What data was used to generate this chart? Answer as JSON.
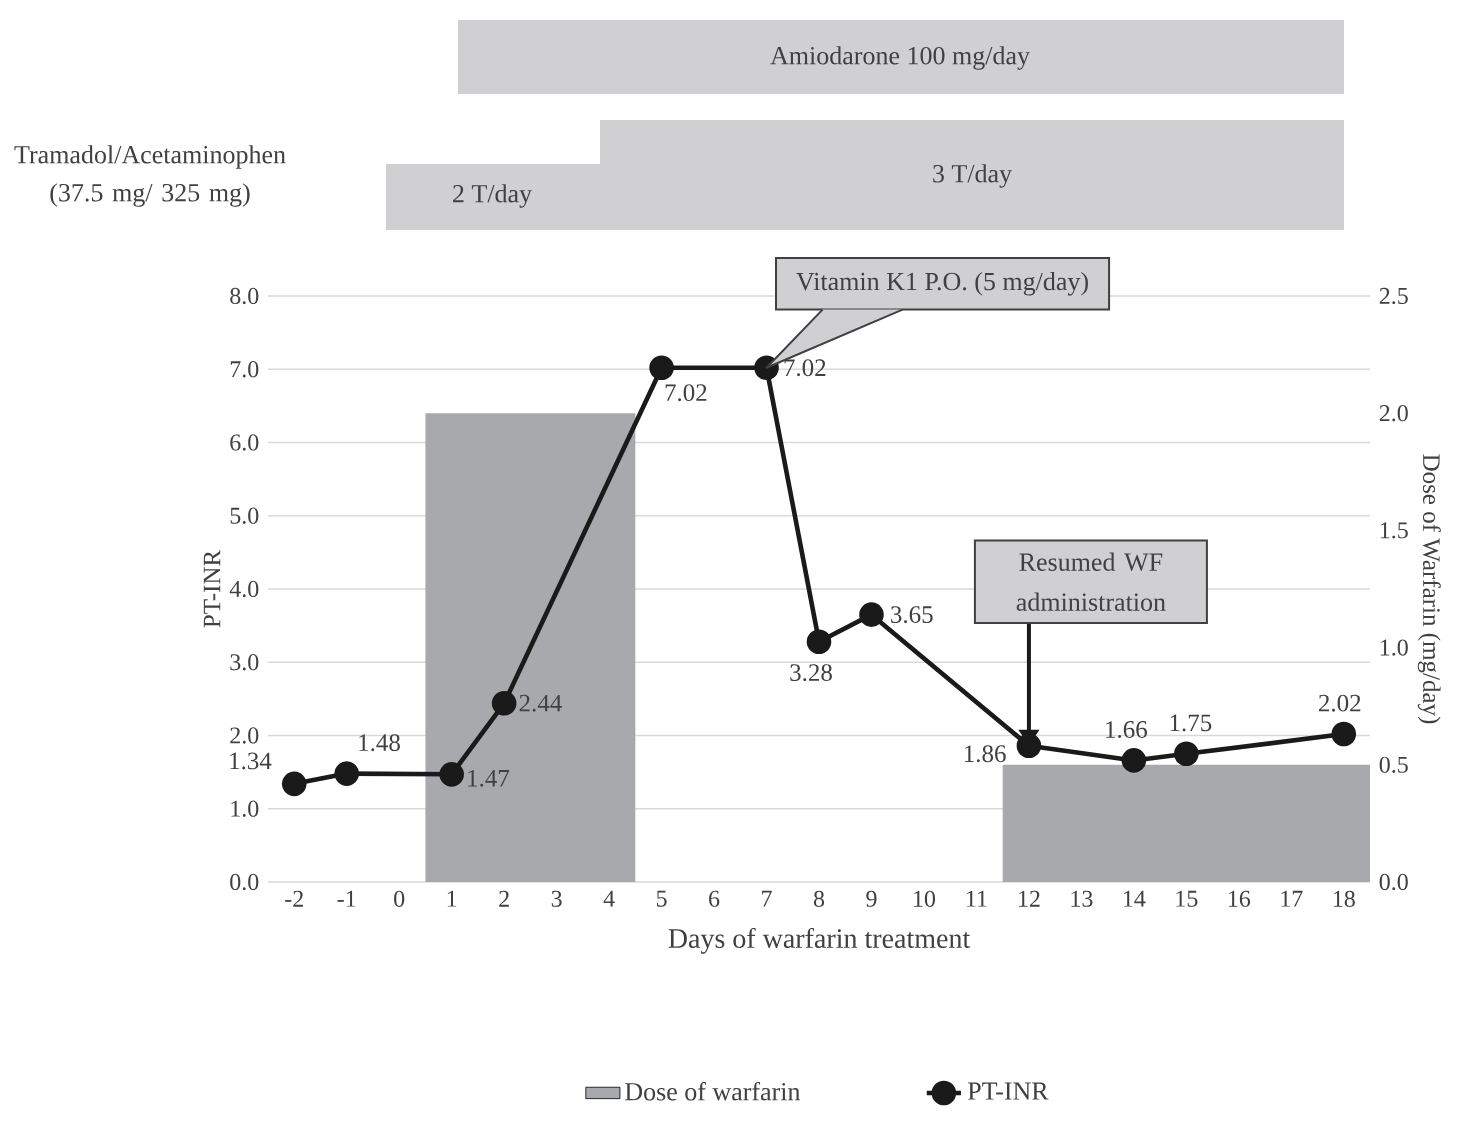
{
  "chart_data": {
    "type": "line",
    "xlabel": "Days of warfarin treatment",
    "ylabel": "PT-INR",
    "y2label": "Dose of Warfarin (mg/day)",
    "xlim": [
      -2.5,
      18.5
    ],
    "xticks": [
      -2,
      -1,
      0,
      1,
      2,
      3,
      4,
      5,
      6,
      7,
      8,
      9,
      10,
      11,
      12,
      13,
      14,
      15,
      16,
      17,
      18
    ],
    "ylim": [
      0,
      8
    ],
    "yticks": [
      {
        "value": 0,
        "label": "0.0"
      },
      {
        "value": 1,
        "label": "1.0"
      },
      {
        "value": 2,
        "label": "2.0"
      },
      {
        "value": 3,
        "label": "3.0"
      },
      {
        "value": 4,
        "label": "4.0"
      },
      {
        "value": 5,
        "label": "5.0"
      },
      {
        "value": 6,
        "label": "6.0"
      },
      {
        "value": 7,
        "label": "7.0"
      },
      {
        "value": 8,
        "label": "8.0"
      }
    ],
    "y2lim": [
      0,
      2.5
    ],
    "y2ticks": [
      {
        "value": 0,
        "label": "0.0"
      },
      {
        "value": 0.5,
        "label": "0.5"
      },
      {
        "value": 1,
        "label": "1.0"
      },
      {
        "value": 1.5,
        "label": "1.5"
      },
      {
        "value": 2,
        "label": "2.0"
      },
      {
        "value": 2.5,
        "label": "2.5"
      }
    ],
    "grid": "y",
    "legend": "bottom",
    "line_style": "solid",
    "series": [
      {
        "name": "Dose of warfarin",
        "type": "area",
        "axis": "y2",
        "color": "#a8a9ad",
        "x": [
          0.5,
          4.5,
          8,
          11.5,
          18.5
        ],
        "values": [
          2,
          2,
          null,
          0.5,
          0.5
        ]
      },
      {
        "name": "PT-INR",
        "marker": "circle",
        "color": "#1a1a1a",
        "x": [
          -2,
          -1,
          1,
          2,
          5,
          7,
          8,
          9,
          12,
          14,
          15,
          18
        ],
        "values": [
          1.34,
          1.48,
          1.47,
          2.44,
          7.02,
          7.02,
          3.28,
          3.65,
          1.86,
          1.66,
          1.75,
          2.02
        ],
        "value_labels": [
          "1.34",
          "1.48",
          "1.47",
          "2.44",
          "7.02",
          "7.02",
          "3.28",
          "3.65",
          "1.86",
          "1.66",
          "1.75",
          "2.02"
        ]
      }
    ],
    "annotations": [
      "Amiodarone 100 mg/day",
      "2 T/day",
      "3 T/day",
      "Tramadol/Acetaminophen (37.5 mg/ 325 mg)",
      {
        "text": "Vitamin K1 P.O. (5 mg/day)",
        "x": 7,
        "y": 7.02
      },
      {
        "text": "Resumed WF administration",
        "x": 12,
        "y": 1.86
      }
    ]
  }
}
